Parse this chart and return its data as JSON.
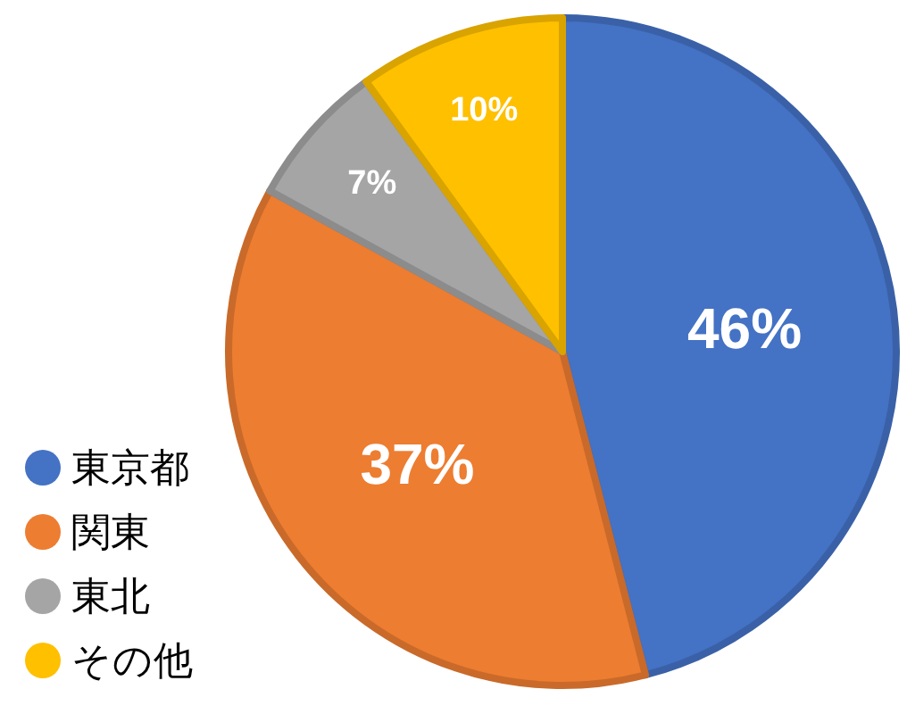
{
  "chart_data": {
    "type": "pie",
    "categories": [
      "東京都",
      "関東",
      "東北",
      "その他"
    ],
    "values": [
      46,
      37,
      7,
      10
    ],
    "colors": [
      "#4472c4",
      "#ed7d31",
      "#a5a5a5",
      "#ffc000"
    ],
    "value_labels": [
      "46%",
      "37%",
      "7%",
      "10%"
    ],
    "legend": "bottom left"
  }
}
